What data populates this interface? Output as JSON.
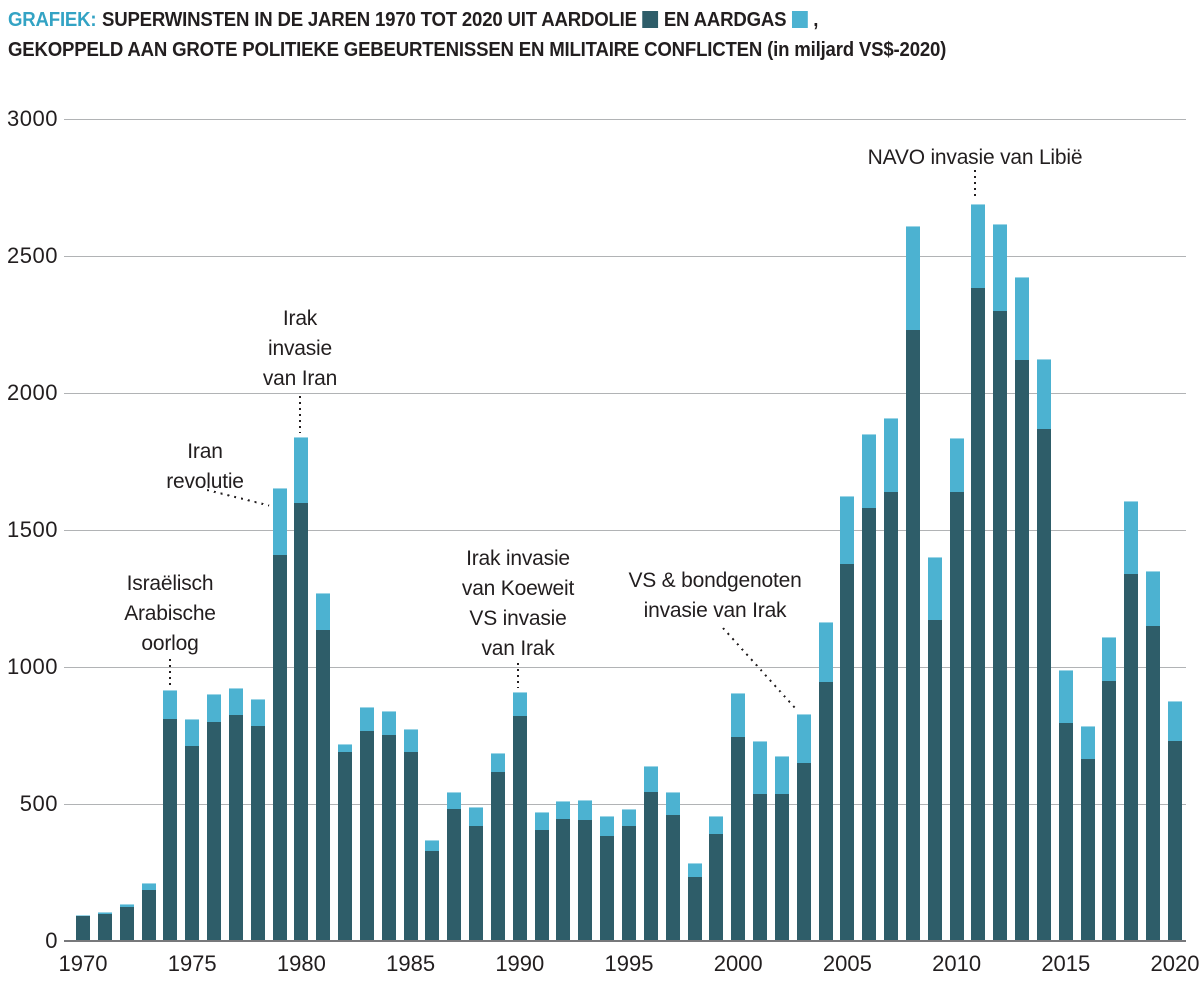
{
  "colors": {
    "aardolie": "#2e5d69",
    "aardgas": "#4cb2d1",
    "title_tag": "#33a3c4",
    "text": "#221e1f",
    "gridline": "#b1b3b5",
    "axis": "#77787b"
  },
  "title": {
    "tag": "GRAFIEK:",
    "line1_before_oil_swatch": "SUPERWINSTEN IN DE JAREN 1970 TOT 2020 UIT AARDOLIE",
    "line1_between_swatches": "EN AARDGAS",
    "line1_after_gas_swatch": ",",
    "line2": "GEKOPPELD AAN GROTE POLITIEKE GEBEURTENISSEN EN MILITAIRE CONFLICTEN (in miljard VS$-2020)"
  },
  "chart_data": {
    "type": "bar",
    "stacked": true,
    "title": "Superwinsten in de jaren 1970 tot 2020 uit aardolie en aardgas, gekoppeld aan grote politieke gebeurtenissen en militaire conflicten",
    "unit": "miljard VS$-2020",
    "xlabel": "",
    "ylabel": "",
    "ylim": [
      0,
      3000
    ],
    "ytick_step": 500,
    "y_ticks": [
      0,
      500,
      1000,
      1500,
      2000,
      2500,
      3000
    ],
    "x_ticks": [
      1970,
      1975,
      1980,
      1985,
      1990,
      1995,
      2000,
      2005,
      2010,
      2015,
      2020
    ],
    "years": [
      1970,
      1971,
      1972,
      1973,
      1974,
      1975,
      1976,
      1977,
      1978,
      1979,
      1980,
      1981,
      1982,
      1983,
      1984,
      1985,
      1986,
      1987,
      1988,
      1989,
      1990,
      1991,
      1992,
      1993,
      1994,
      1995,
      1996,
      1997,
      1998,
      1999,
      2000,
      2001,
      2002,
      2003,
      2004,
      2005,
      2006,
      2007,
      2008,
      2009,
      2010,
      2011,
      2012,
      2013,
      2014,
      2015,
      2016,
      2017,
      2018,
      2019,
      2020
    ],
    "series": [
      {
        "name": "Aardolie",
        "color": "#2e5d69",
        "values": [
          90,
          100,
          125,
          185,
          810,
          710,
          800,
          825,
          785,
          1410,
          1600,
          1135,
          690,
          765,
          750,
          690,
          330,
          480,
          420,
          615,
          820,
          405,
          445,
          440,
          385,
          420,
          545,
          460,
          235,
          390,
          745,
          535,
          535,
          650,
          945,
          1375,
          1580,
          1640,
          2230,
          1170,
          1640,
          2385,
          2300,
          2120,
          1870,
          795,
          665,
          950,
          1340,
          1150,
          730
        ]
      },
      {
        "name": "Aardgas",
        "color": "#4cb2d1",
        "values": [
          5,
          7,
          10,
          25,
          105,
          100,
          100,
          100,
          100,
          245,
          240,
          135,
          30,
          90,
          90,
          85,
          40,
          65,
          70,
          70,
          90,
          65,
          65,
          75,
          70,
          60,
          95,
          85,
          50,
          65,
          160,
          195,
          140,
          180,
          220,
          250,
          270,
          270,
          380,
          230,
          195,
          305,
          315,
          305,
          255,
          195,
          120,
          160,
          265,
          200,
          145
        ]
      }
    ],
    "annotations": [
      {
        "id": "israelisch-arabische-oorlog",
        "lines": [
          "Israëlisch",
          "Arabische",
          "oorlog"
        ],
        "target_year": 1974
      },
      {
        "id": "iran-revolutie",
        "lines": [
          "Iran",
          "revolutie"
        ],
        "target_year": 1979
      },
      {
        "id": "irak-invasie-van-iran",
        "lines": [
          "Irak",
          "invasie",
          "van Iran"
        ],
        "target_year": 1980
      },
      {
        "id": "irak-invasie-van-koeweit",
        "lines": [
          "Irak invasie",
          "van Koeweit",
          "VS invasie",
          "van Irak"
        ],
        "target_year": 1990
      },
      {
        "id": "vs-bondgenoten-invasie-van-irak",
        "lines": [
          "VS & bondgenoten",
          "invasie van Irak"
        ],
        "target_year": 2003
      },
      {
        "id": "navo-invasie-van-libie",
        "lines": [
          "NAVO invasie van Libië"
        ],
        "target_year": 2011
      }
    ],
    "legend_position": "inline-in-title",
    "grid": true
  }
}
